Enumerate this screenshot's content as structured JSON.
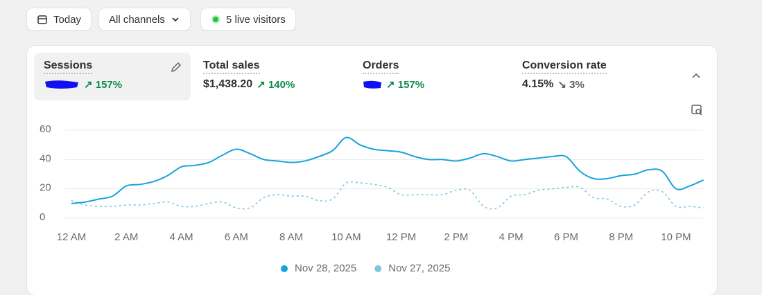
{
  "toolbar": {
    "date": "Today",
    "channels": "All channels",
    "live": "5 live visitors"
  },
  "metrics": [
    {
      "label": "Sessions",
      "change": "157%"
    },
    {
      "label": "Total sales",
      "value": "$1,438.20",
      "change": "140%"
    },
    {
      "label": "Orders",
      "change": "157%"
    },
    {
      "label": "Conversion rate",
      "value": "4.15%",
      "change": "3%"
    }
  ],
  "chart_data": {
    "type": "line",
    "categories": [
      "12 AM",
      null,
      null,
      null,
      "2 AM",
      null,
      null,
      null,
      "4 AM",
      null,
      null,
      null,
      "6 AM",
      null,
      null,
      null,
      "8 AM",
      null,
      null,
      null,
      "10 AM",
      null,
      null,
      null,
      "12 PM",
      null,
      null,
      null,
      "2 PM",
      null,
      null,
      null,
      "4 PM",
      null,
      null,
      null,
      "6 PM",
      null,
      null,
      null,
      "8 PM",
      null,
      null,
      null,
      "10 PM",
      null,
      null
    ],
    "series": [
      {
        "name": "Nov 28, 2025",
        "color": "#16a3dc",
        "values": [
          10,
          11,
          13,
          15,
          22,
          23,
          25,
          29,
          35,
          36,
          38,
          43,
          47,
          44,
          40,
          39,
          38,
          39,
          42,
          46,
          55,
          50,
          47,
          46,
          45,
          42,
          40,
          40,
          39,
          41,
          44,
          42,
          39,
          40,
          41,
          42,
          42,
          32,
          27,
          27,
          29,
          30,
          33,
          32,
          20,
          22,
          26
        ]
      },
      {
        "name": "Nov 27, 2025",
        "color": "#7fc6e2",
        "dashed": true,
        "values": [
          12,
          9,
          8,
          8,
          9,
          9,
          10,
          11,
          8,
          8,
          10,
          11,
          7,
          7,
          14,
          16,
          15,
          15,
          12,
          13,
          24,
          24,
          23,
          21,
          16,
          16,
          16,
          16,
          19,
          19,
          8,
          7,
          15,
          16,
          19,
          20,
          21,
          21,
          14,
          13,
          8,
          9,
          18,
          18,
          8,
          8,
          7
        ]
      }
    ],
    "ylim": [
      0,
      60
    ],
    "yticks": [
      0,
      20,
      40,
      60
    ],
    "grid": true
  }
}
